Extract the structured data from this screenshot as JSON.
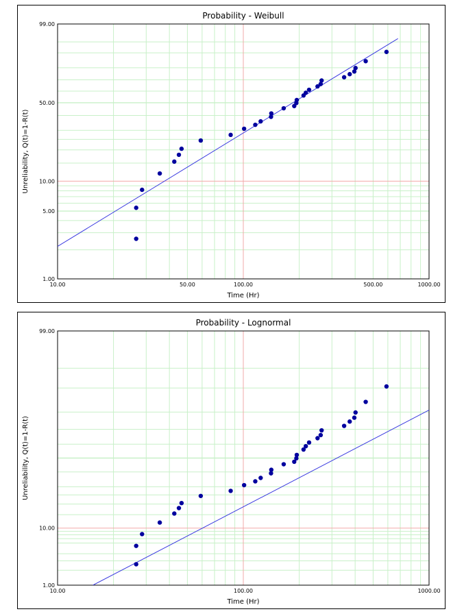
{
  "colors": {
    "grid_minor": "#c8f0c8",
    "grid_major": "#f2a8a8",
    "fit_line": "#3b3be0",
    "points": "#00009e",
    "frame": "#000000"
  },
  "chart_data": [
    {
      "type": "scatter",
      "title": "Probability - Weibull",
      "xlabel": "Time (Hr)",
      "ylabel": "Unreliability, Q(t)=1-R(t)",
      "xscale": "log",
      "yscale": "weibull",
      "xlim": [
        10,
        1000
      ],
      "ylim": [
        1,
        99
      ],
      "xticks": [
        10,
        50,
        100,
        500,
        1000
      ],
      "xtick_labels": [
        "10.00",
        "50.00",
        "100.00",
        "500.00",
        "1000.00"
      ],
      "yticks": [
        1,
        5,
        10,
        50,
        99
      ],
      "ytick_labels": [
        "1.00",
        "5.00",
        "10.00",
        "50.00",
        "99.00"
      ],
      "grid": true,
      "points": {
        "x": [
          26.5,
          26.5,
          28.5,
          35.5,
          42.5,
          45,
          46.5,
          59,
          85.5,
          101,
          116,
          124,
          141,
          141.5,
          165,
          188,
          193,
          194,
          211,
          217,
          226,
          251,
          261,
          264,
          349,
          374,
          396,
          402,
          456,
          590
        ],
        "y": [
          2.6,
          5.4,
          8.2,
          11.9,
          15.5,
          18.0,
          20.5,
          24.4,
          27.4,
          31.0,
          33.5,
          35.8,
          39.0,
          41.5,
          45.5,
          47.3,
          49.8,
          52.3,
          56.2,
          58.6,
          61.2,
          64.2,
          66.3,
          69.4,
          72.2,
          74.8,
          77.0,
          79.8,
          84.8,
          90.5
        ]
      },
      "fit_line": {
        "x": [
          10,
          680
        ],
        "y": [
          2.17,
          96.1
        ]
      }
    },
    {
      "type": "scatter",
      "title": "Probability - Lognormal",
      "xlabel": "Time (Hr)",
      "ylabel": "Unreliability, Q(t)=1-R(t)",
      "xscale": "log",
      "yscale": "lognormal",
      "xlim": [
        10,
        1000
      ],
      "ylim": [
        1,
        99
      ],
      "xticks": [
        10,
        100,
        1000
      ],
      "xtick_labels": [
        "10.00",
        "100.00",
        "1000.00"
      ],
      "yticks": [
        1,
        10,
        99
      ],
      "ytick_labels": [
        "1.00",
        "10.00",
        "99.00"
      ],
      "grid": true,
      "points": {
        "x": [
          26.5,
          26.5,
          28.5,
          35.5,
          42.5,
          45,
          46.5,
          59,
          85.5,
          101,
          116,
          124,
          141,
          141.5,
          165,
          188,
          193,
          194,
          211,
          217,
          226,
          251,
          261,
          264,
          349,
          374,
          396,
          402,
          456,
          590
        ],
        "y": [
          2.6,
          5.4,
          8.2,
          11.9,
          15.5,
          18.0,
          20.5,
          24.4,
          27.4,
          31.0,
          33.5,
          35.8,
          39.0,
          41.5,
          45.5,
          47.3,
          49.8,
          52.3,
          56.2,
          58.6,
          61.2,
          64.2,
          66.3,
          69.4,
          72.2,
          74.8,
          77.0,
          79.8,
          84.8,
          90.5
        ]
      },
      "fit_line": {
        "x": [
          15.5,
          1000
        ],
        "y": [
          1.0,
          81.0
        ]
      }
    }
  ]
}
